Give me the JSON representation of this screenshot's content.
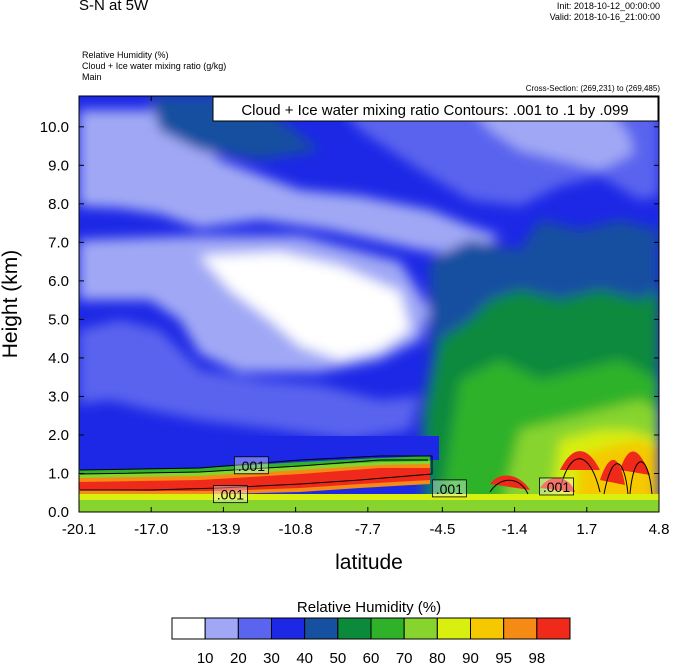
{
  "header": {
    "title": "S-N at 5W",
    "init": "Init: 2018-10-12_00:00:00",
    "valid": "Valid: 2018-10-16_21:00:00",
    "field1": "Relative Humidity   (%)",
    "field2": "Cloud + Ice water mixing ratio   (g/kg)",
    "field3": "Main",
    "cross_section": "Cross-Section: (269,231) to (269,485)"
  },
  "colors": {
    "fill_levels": [
      "#ffffff",
      "#a0a8f5",
      "#5a64ee",
      "#1d28e6",
      "#1650a0",
      "#0b8a3c",
      "#2fb22a",
      "#87d42e",
      "#d8ef10",
      "#f5c800",
      "#f58a14",
      "#f02a1a"
    ]
  },
  "chart_data": {
    "type": "heatmap",
    "title": "",
    "contour_box": "Cloud + Ice water mixing ratio Contours: .001 to .1 by .099",
    "xlabel": "latitude",
    "ylabel": "Height (km)",
    "x_ticks": [
      "-20.1",
      "-17.0",
      "-13.9",
      "-10.8",
      "-7.7",
      "-4.5",
      "-1.4",
      "1.7",
      "4.8"
    ],
    "x_tick_values": [
      -20.1,
      -17.0,
      -13.9,
      -10.8,
      -7.7,
      -4.5,
      -1.4,
      1.7,
      4.8
    ],
    "y_ticks": [
      "0.0",
      "1.0",
      "2.0",
      "3.0",
      "4.0",
      "5.0",
      "6.0",
      "7.0",
      "8.0",
      "9.0",
      "10.0"
    ],
    "y_tick_values": [
      0,
      1,
      2,
      3,
      4,
      5,
      6,
      7,
      8,
      9,
      10
    ],
    "xlim": [
      -20.1,
      4.8
    ],
    "ylim": [
      0,
      10.8
    ],
    "contour_labels": [
      {
        "text": ".001",
        "x": -12.7,
        "y": 1.2
      },
      {
        "text": ".001",
        "x": -13.6,
        "y": 0.45
      },
      {
        "text": ".001",
        "x": -4.2,
        "y": 0.6
      },
      {
        "text": ".001",
        "x": 0.4,
        "y": 0.65
      }
    ],
    "colorbar": {
      "title": "Relative Humidity  (%)",
      "labels": [
        "10",
        "20",
        "30",
        "40",
        "50",
        "60",
        "70",
        "80",
        "90",
        "95",
        "98"
      ]
    }
  }
}
